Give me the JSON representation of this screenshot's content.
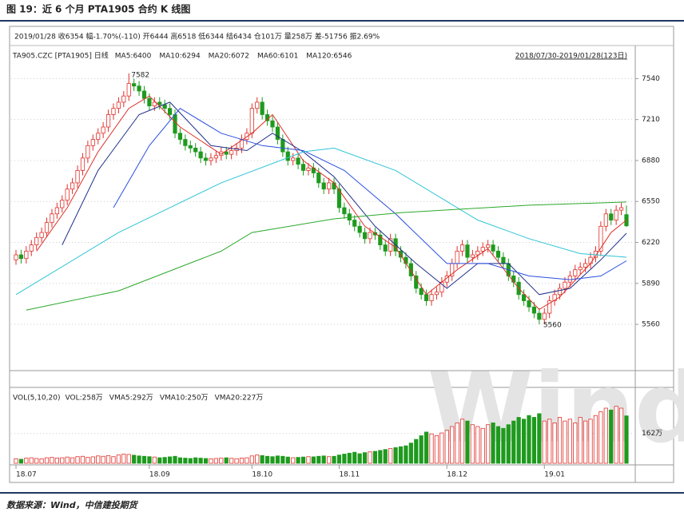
{
  "title": "图 19：近 6 个月 PTA1905 合约 K 线图",
  "source": "数据来源：Wind，中信建投期货",
  "chart_data": [
    {
      "type": "candlestick",
      "info": "2019/01/28 收6354 幅-1.70%(-110) 开6444 高6518 低6344 结6434 仓101万 量258万 差-51756 振2.69%",
      "legend_prefix": "TA905.CZC [PTA1905] 日线",
      "range_label": "2018/07/30-2019/01/28(123日)",
      "watermark": "Wind",
      "up_color": "#e0302a",
      "down_color": "#1e9a1e",
      "open": [
        6080,
        6120,
        6090,
        6150,
        6200,
        6260,
        6300,
        6380,
        6450,
        6500,
        6560,
        6650,
        6700,
        6800,
        6900,
        7000,
        7050,
        7100,
        7150,
        7250,
        7300,
        7350,
        7400,
        7500,
        7480,
        7440,
        7380,
        7320,
        7350,
        7330,
        7300,
        7250,
        7100,
        7050,
        7000,
        6980,
        6950,
        6900,
        6880,
        6900,
        6920,
        6950,
        6930,
        6960,
        6980,
        7050,
        7100,
        7300,
        7350,
        7250,
        7200,
        7150,
        7050,
        6950,
        6880,
        6900,
        6850,
        6800,
        6820,
        6780,
        6700,
        6650,
        6700,
        6650,
        6500,
        6450,
        6400,
        6350,
        6300,
        6250,
        6300,
        6280,
        6200,
        6150,
        6250,
        6150,
        6100,
        6050,
        5950,
        5850,
        5800,
        5750,
        5800,
        5820,
        5900,
        5950,
        6050,
        6150,
        6200,
        6100,
        6120,
        6150,
        6180,
        6200,
        6150,
        6100,
        6050,
        5950,
        5900,
        5800,
        5750,
        5700,
        5650,
        5600,
        5650,
        5750,
        5800,
        5850,
        5900,
        5950,
        6000,
        6020,
        6050,
        6100,
        6150,
        6350,
        6450,
        6400,
        6480,
        6444
      ],
      "high": [
        6160,
        6160,
        6190,
        6240,
        6300,
        6340,
        6420,
        6490,
        6540,
        6600,
        6690,
        6740,
        6840,
        6940,
        7040,
        7090,
        7140,
        7190,
        7290,
        7340,
        7390,
        7440,
        7582,
        7540,
        7520,
        7480,
        7420,
        7390,
        7390,
        7370,
        7340,
        7290,
        7140,
        7090,
        7040,
        7020,
        6990,
        6940,
        6940,
        6960,
        6990,
        6990,
        7000,
        7020,
        7090,
        7140,
        7340,
        7390,
        7390,
        7290,
        7240,
        7190,
        7090,
        6990,
        6940,
        6940,
        6890,
        6860,
        6860,
        6820,
        6740,
        6740,
        6740,
        6690,
        6540,
        6490,
        6440,
        6390,
        6340,
        6340,
        6340,
        6320,
        6240,
        6290,
        6290,
        6190,
        6140,
        6090,
        5990,
        5890,
        5840,
        5840,
        5860,
        5940,
        5990,
        6090,
        6190,
        6240,
        6240,
        6160,
        6190,
        6220,
        6240,
        6240,
        6190,
        6140,
        6090,
        5990,
        5940,
        5840,
        5790,
        5740,
        5690,
        5690,
        5790,
        5840,
        5890,
        5940,
        5990,
        6040,
        6060,
        6090,
        6140,
        6190,
        6390,
        6490,
        6490,
        6520,
        6540,
        6518
      ],
      "low": [
        6040,
        6050,
        6050,
        6110,
        6160,
        6220,
        6260,
        6340,
        6410,
        6460,
        6520,
        6610,
        6660,
        6760,
        6860,
        6960,
        7010,
        7060,
        7110,
        7210,
        7260,
        7310,
        7360,
        7440,
        7400,
        7340,
        7280,
        7280,
        7290,
        7260,
        7210,
        7060,
        7010,
        6960,
        6940,
        6910,
        6860,
        6840,
        6840,
        6860,
        6880,
        6890,
        6890,
        6920,
        6940,
        7010,
        7060,
        7260,
        7210,
        7160,
        7110,
        7010,
        6910,
        6840,
        6840,
        6810,
        6760,
        6760,
        6740,
        6660,
        6610,
        6610,
        6610,
        6460,
        6410,
        6360,
        6310,
        6260,
        6210,
        6210,
        6240,
        6160,
        6110,
        6110,
        6110,
        6060,
        6010,
        5910,
        5810,
        5760,
        5710,
        5710,
        5760,
        5780,
        5860,
        5910,
        6010,
        6110,
        6060,
        6060,
        6080,
        6110,
        6140,
        6110,
        6060,
        6010,
        5910,
        5860,
        5760,
        5710,
        5660,
        5610,
        5560,
        5560,
        5610,
        5710,
        5760,
        5810,
        5860,
        5910,
        5960,
        5980,
        6010,
        6060,
        6110,
        6310,
        6360,
        6360,
        6440,
        6344
      ],
      "close": [
        6120,
        6090,
        6150,
        6200,
        6260,
        6300,
        6380,
        6450,
        6500,
        6560,
        6650,
        6700,
        6800,
        6900,
        7000,
        7050,
        7100,
        7150,
        7250,
        7300,
        7350,
        7400,
        7500,
        7480,
        7440,
        7380,
        7320,
        7350,
        7330,
        7300,
        7250,
        7100,
        7050,
        7000,
        6980,
        6950,
        6900,
        6880,
        6900,
        6920,
        6950,
        6930,
        6960,
        6980,
        7050,
        7100,
        7300,
        7350,
        7250,
        7200,
        7150,
        7050,
        6950,
        6880,
        6900,
        6850,
        6800,
        6820,
        6780,
        6700,
        6650,
        6700,
        6650,
        6500,
        6450,
        6400,
        6350,
        6300,
        6250,
        6300,
        6280,
        6200,
        6150,
        6250,
        6150,
        6100,
        6050,
        5950,
        5850,
        5800,
        5750,
        5800,
        5820,
        5900,
        5950,
        6050,
        6150,
        6200,
        6100,
        6120,
        6150,
        6180,
        6200,
        6150,
        6100,
        6050,
        5950,
        5900,
        5800,
        5750,
        5700,
        5650,
        5600,
        5650,
        5750,
        5800,
        5850,
        5900,
        5950,
        6000,
        6020,
        6050,
        6100,
        6150,
        6350,
        6450,
        6400,
        6480,
        6500,
        6354
      ],
      "series": [
        {
          "name": "MA5:6400",
          "color": "#e0302a",
          "x": [
            4,
            10,
            16,
            22,
            26,
            32,
            40,
            46,
            50,
            56,
            62,
            68,
            74,
            80,
            86,
            92,
            98,
            102,
            106,
            112,
            116,
            119
          ],
          "values": [
            6150,
            6500,
            6950,
            7300,
            7400,
            7150,
            6930,
            7100,
            7250,
            6880,
            6700,
            6350,
            6180,
            5800,
            6000,
            6170,
            5850,
            5680,
            5780,
            6050,
            6300,
            6400
          ]
        },
        {
          "name": "MA10:6294",
          "color": "#1f2f8a",
          "x": [
            9,
            16,
            24,
            30,
            38,
            45,
            50,
            56,
            62,
            70,
            78,
            84,
            90,
            96,
            102,
            108,
            114,
            119
          ],
          "values": [
            6200,
            6800,
            7250,
            7350,
            7000,
            6960,
            7100,
            6950,
            6750,
            6350,
            6050,
            5850,
            6050,
            6050,
            5800,
            5850,
            6080,
            6294
          ]
        },
        {
          "name": "MA20:6072",
          "color": "#2a4fe0",
          "x": [
            19,
            26,
            32,
            40,
            48,
            56,
            64,
            74,
            84,
            92,
            100,
            108,
            114,
            119
          ],
          "values": [
            6500,
            7000,
            7300,
            7100,
            7000,
            6960,
            6800,
            6450,
            6050,
            6050,
            5950,
            5920,
            5950,
            6072
          ]
        },
        {
          "name": "MA60:6101",
          "color": "#2ec4d6",
          "x": [
            0,
            20,
            40,
            56,
            62,
            74,
            90,
            100,
            110,
            119
          ],
          "values": [
            5800,
            6300,
            6700,
            6950,
            6980,
            6800,
            6400,
            6250,
            6130,
            6101
          ]
        },
        {
          "name": "MA120:6546",
          "color": "#2aa82a",
          "x": [
            2,
            20,
            40,
            46,
            62,
            75,
            100,
            119
          ],
          "values": [
            5675,
            5830,
            6150,
            6300,
            6410,
            6460,
            6520,
            6546
          ]
        }
      ],
      "annotations": [
        "7582",
        "5560"
      ],
      "ylim": [
        5200,
        7800
      ],
      "yticks": [
        5560,
        5890,
        6220,
        6550,
        6880,
        7210,
        7540
      ],
      "xticks": [
        {
          "value": 0,
          "label": "18.07"
        },
        {
          "value": 26,
          "label": "18.09"
        },
        {
          "value": 46,
          "label": "18.10"
        },
        {
          "value": 63,
          "label": "18.11"
        },
        {
          "value": 84,
          "label": "18.12"
        },
        {
          "value": 103,
          "label": "19.01"
        }
      ],
      "grid": true
    },
    {
      "type": "volume",
      "legend_prefix": "VOL(5,10,20)",
      "series": [
        {
          "name": "VOL:258万",
          "color": "#e0302a"
        },
        {
          "name": "VMA5:292万",
          "color": "#e0302a"
        },
        {
          "name": "VMA10:250万",
          "color": "#1e9a1e"
        },
        {
          "name": "VMA20:227万",
          "color": "#000000"
        }
      ],
      "values": [
        25,
        22,
        28,
        30,
        26,
        24,
        30,
        32,
        28,
        30,
        34,
        30,
        36,
        38,
        32,
        35,
        40,
        38,
        42,
        36,
        45,
        50,
        48,
        44,
        40,
        38,
        36,
        34,
        30,
        32,
        35,
        38,
        30,
        28,
        26,
        30,
        28,
        26,
        24,
        26,
        28,
        30,
        27,
        25,
        28,
        30,
        40,
        45,
        42,
        38,
        36,
        40,
        38,
        34,
        30,
        32,
        34,
        36,
        35,
        38,
        40,
        36,
        38,
        45,
        50,
        55,
        60,
        52,
        58,
        62,
        65,
        70,
        75,
        80,
        85,
        90,
        95,
        110,
        130,
        150,
        170,
        160,
        150,
        165,
        180,
        200,
        220,
        240,
        230,
        210,
        200,
        190,
        210,
        220,
        200,
        190,
        210,
        230,
        250,
        240,
        260,
        250,
        270,
        230,
        240,
        220,
        250,
        230,
        240,
        220,
        250,
        230,
        240,
        260,
        280,
        300,
        290,
        310,
        300,
        258
      ],
      "ylim": [
        0,
        400
      ],
      "yticks": [
        {
          "value": 162,
          "label": "162万"
        }
      ]
    }
  ]
}
